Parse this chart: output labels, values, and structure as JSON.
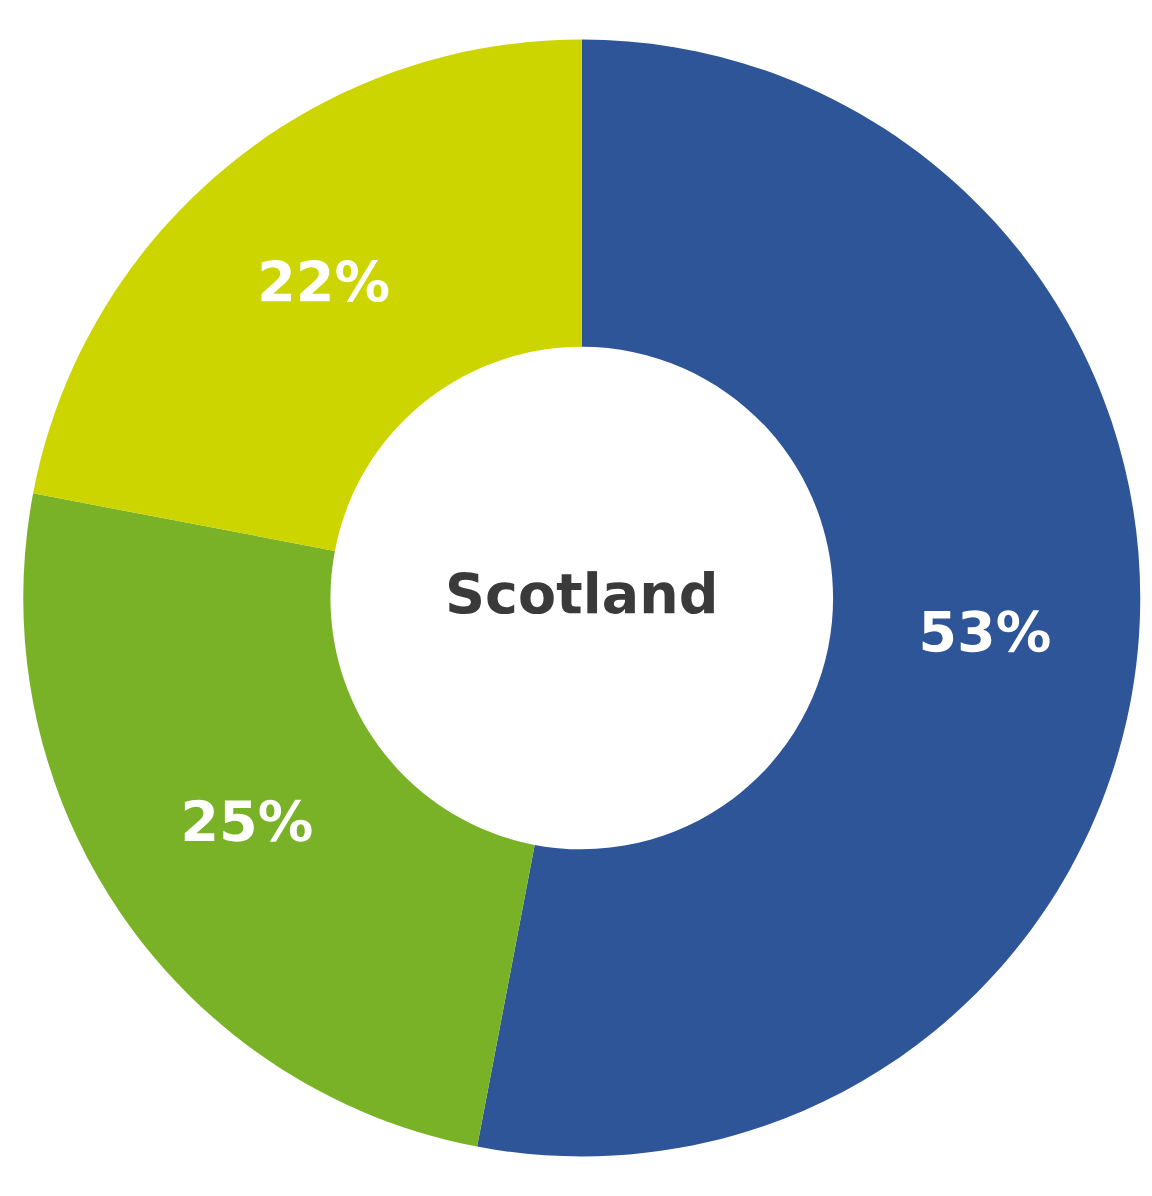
{
  "chart_data": {
    "type": "donut",
    "title": "Scotland",
    "categories": [
      null,
      null,
      null
    ],
    "values": [
      53,
      25,
      22
    ],
    "value_labels": [
      "53%",
      "25%",
      "22%"
    ],
    "colors": [
      "#2e5597",
      "#7ab227",
      "#cdd500"
    ]
  }
}
